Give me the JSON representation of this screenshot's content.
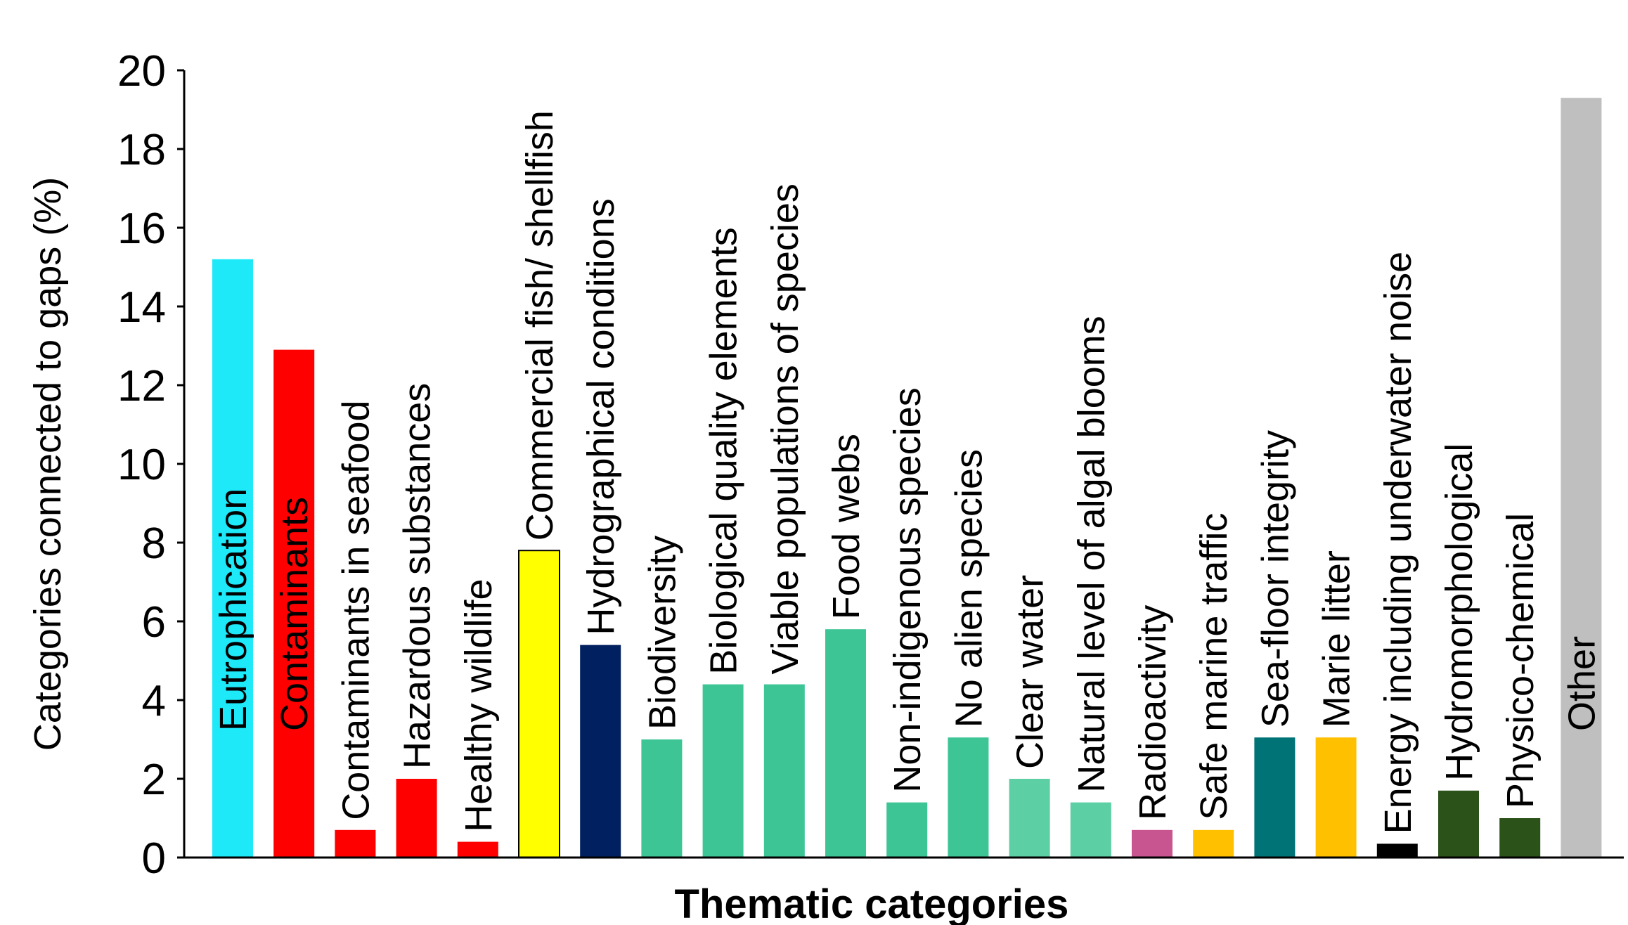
{
  "chart_data": {
    "type": "bar",
    "title": "",
    "xlabel": "Thematic categories",
    "ylabel": "Categories connected to gaps (%)",
    "ylim": [
      0,
      20
    ],
    "yticks": [
      0,
      2,
      4,
      6,
      8,
      10,
      12,
      14,
      16,
      18,
      20
    ],
    "grid": false,
    "categories": [
      "Eutrophication",
      "Contaminants",
      "Contaminants in seafood",
      "Hazardous substances",
      "Healthy wildlife",
      "Commercial fish/ shellfish",
      "Hydrographical conditions",
      "Biodiversity",
      "Biological quality elements",
      "Viable populations of species",
      "Food webs",
      "Non-indigenous species",
      "No alien species",
      "Clear water",
      "Natural level of algal blooms",
      "Radioactivity",
      "Safe marine traffic",
      "Sea-floor integrity",
      "Marie litter",
      "Energy including underwater noise",
      "Hydromorphological",
      "Physico-chemical",
      "Other"
    ],
    "values": [
      15.2,
      12.9,
      0.7,
      2.0,
      0.4,
      7.8,
      5.4,
      3.0,
      4.4,
      4.4,
      5.8,
      1.4,
      3.05,
      2.0,
      1.4,
      0.7,
      0.7,
      3.05,
      3.05,
      0.35,
      1.7,
      1.0,
      19.3
    ],
    "colors": [
      "#1de9f9",
      "#ff0000",
      "#ff0000",
      "#ff0000",
      "#ff0000",
      "#ffff00",
      "#002060",
      "#3dc596",
      "#3dc596",
      "#3dc596",
      "#3dc596",
      "#3dc596",
      "#3dc596",
      "#5ccfa5",
      "#5ccfa5",
      "#c8558f",
      "#ffc000",
      "#007377",
      "#ffc000",
      "#000000",
      "#2a5219",
      "#2a5219",
      "#bfbfbf"
    ]
  }
}
